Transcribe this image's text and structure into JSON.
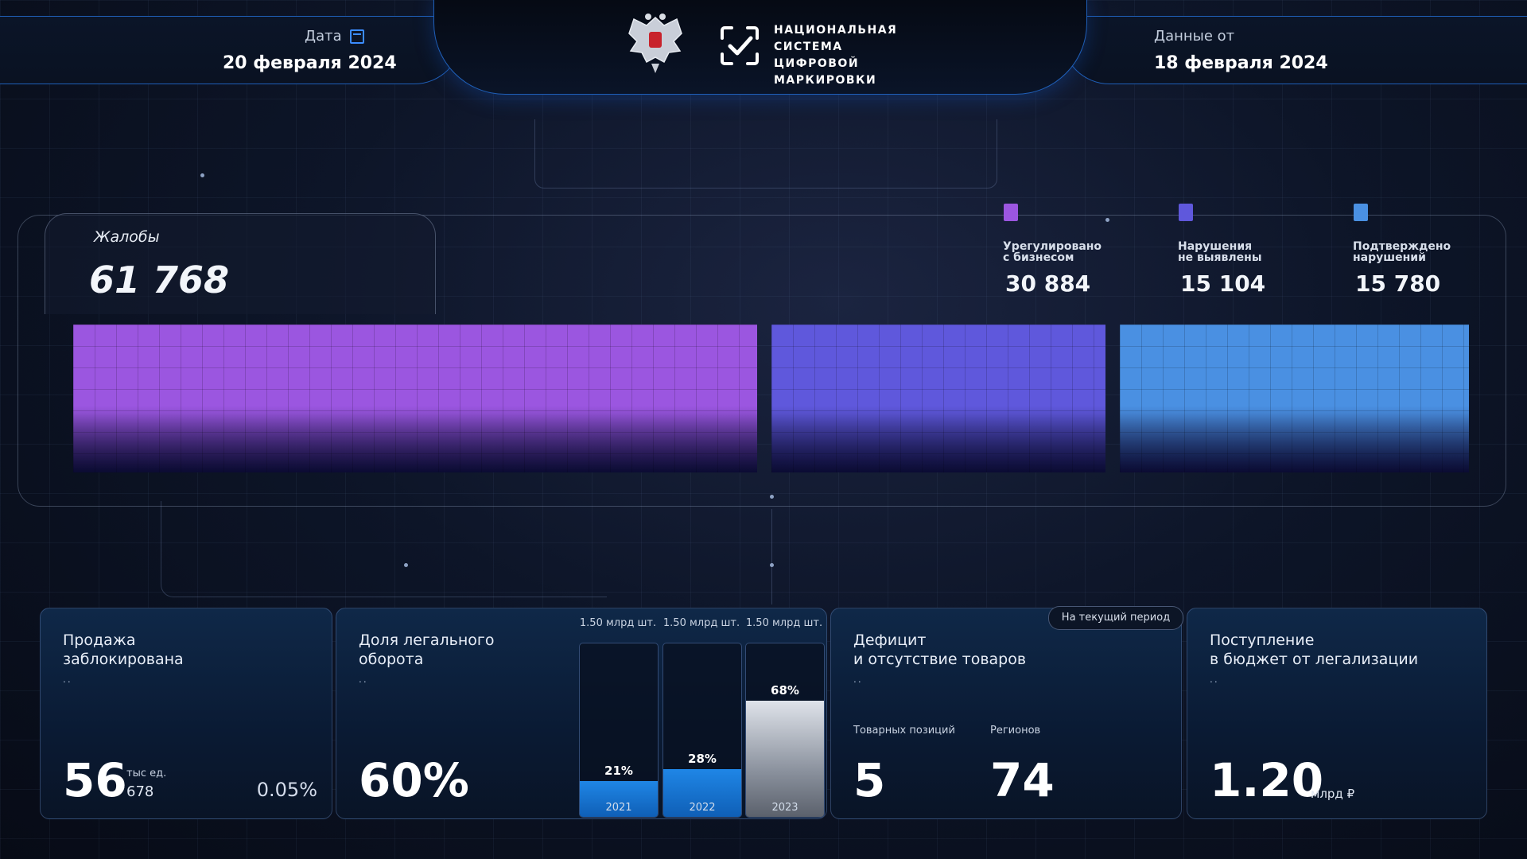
{
  "header": {
    "date_label": "Дата",
    "date_value": "20 февраля 2024",
    "data_from_label": "Данные от",
    "data_from_value": "18 февраля 2024",
    "logo_line1": "НАЦИОНАЛЬНАЯ",
    "logo_line2": "СИСТЕМА ЦИФРОВОЙ",
    "logo_line3": "МАРКИРОВКИ",
    "icons": [
      "calendar-icon",
      "coat-of-arms-emblem",
      "checkmark-frame-logo"
    ]
  },
  "complaints": {
    "title": "Жалобы",
    "total": "61 768",
    "segments": [
      {
        "label": "Урегулировано\nс бизнесом",
        "value": "30 884",
        "color": "#9b56e0"
      },
      {
        "label": "Нарушения\nне выявлены",
        "value": "15 104",
        "color": "#5f58dc"
      },
      {
        "label": "Подтверждено\nнарушений",
        "value": "15 780",
        "color": "#4a90e2"
      }
    ]
  },
  "cards": {
    "blocked": {
      "title": "Продажа\nзаблокирована",
      "dots": "..",
      "value": "56",
      "unit": "тыс ед.",
      "sub_value": "678",
      "percent": "0.05%"
    },
    "legal_share": {
      "title": "Доля легального\nоборота",
      "dots": "..",
      "value": "60%",
      "bars": [
        {
          "top_label": "1.50 млрд шт.",
          "percent": "21%",
          "year": "2021",
          "fraction": 0.21
        },
        {
          "top_label": "1.50 млрд шт.",
          "percent": "28%",
          "year": "2022",
          "fraction": 0.28
        },
        {
          "top_label": "1.50 млрд шт.",
          "percent": "68%",
          "year": "2023",
          "fraction": 0.68
        }
      ]
    },
    "deficit": {
      "title": "Дефицит\nи отсутствие товаров",
      "dots": "..",
      "period_tag": "На текущий период",
      "positions_label": "Товарных позиций",
      "positions_value": "5",
      "regions_label": "Регионов",
      "regions_value": "74"
    },
    "budget": {
      "title": "Поступление\nв бюджет от легализации",
      "dots": "..",
      "value": "1.20",
      "unit": "млрд ₽"
    }
  }
}
